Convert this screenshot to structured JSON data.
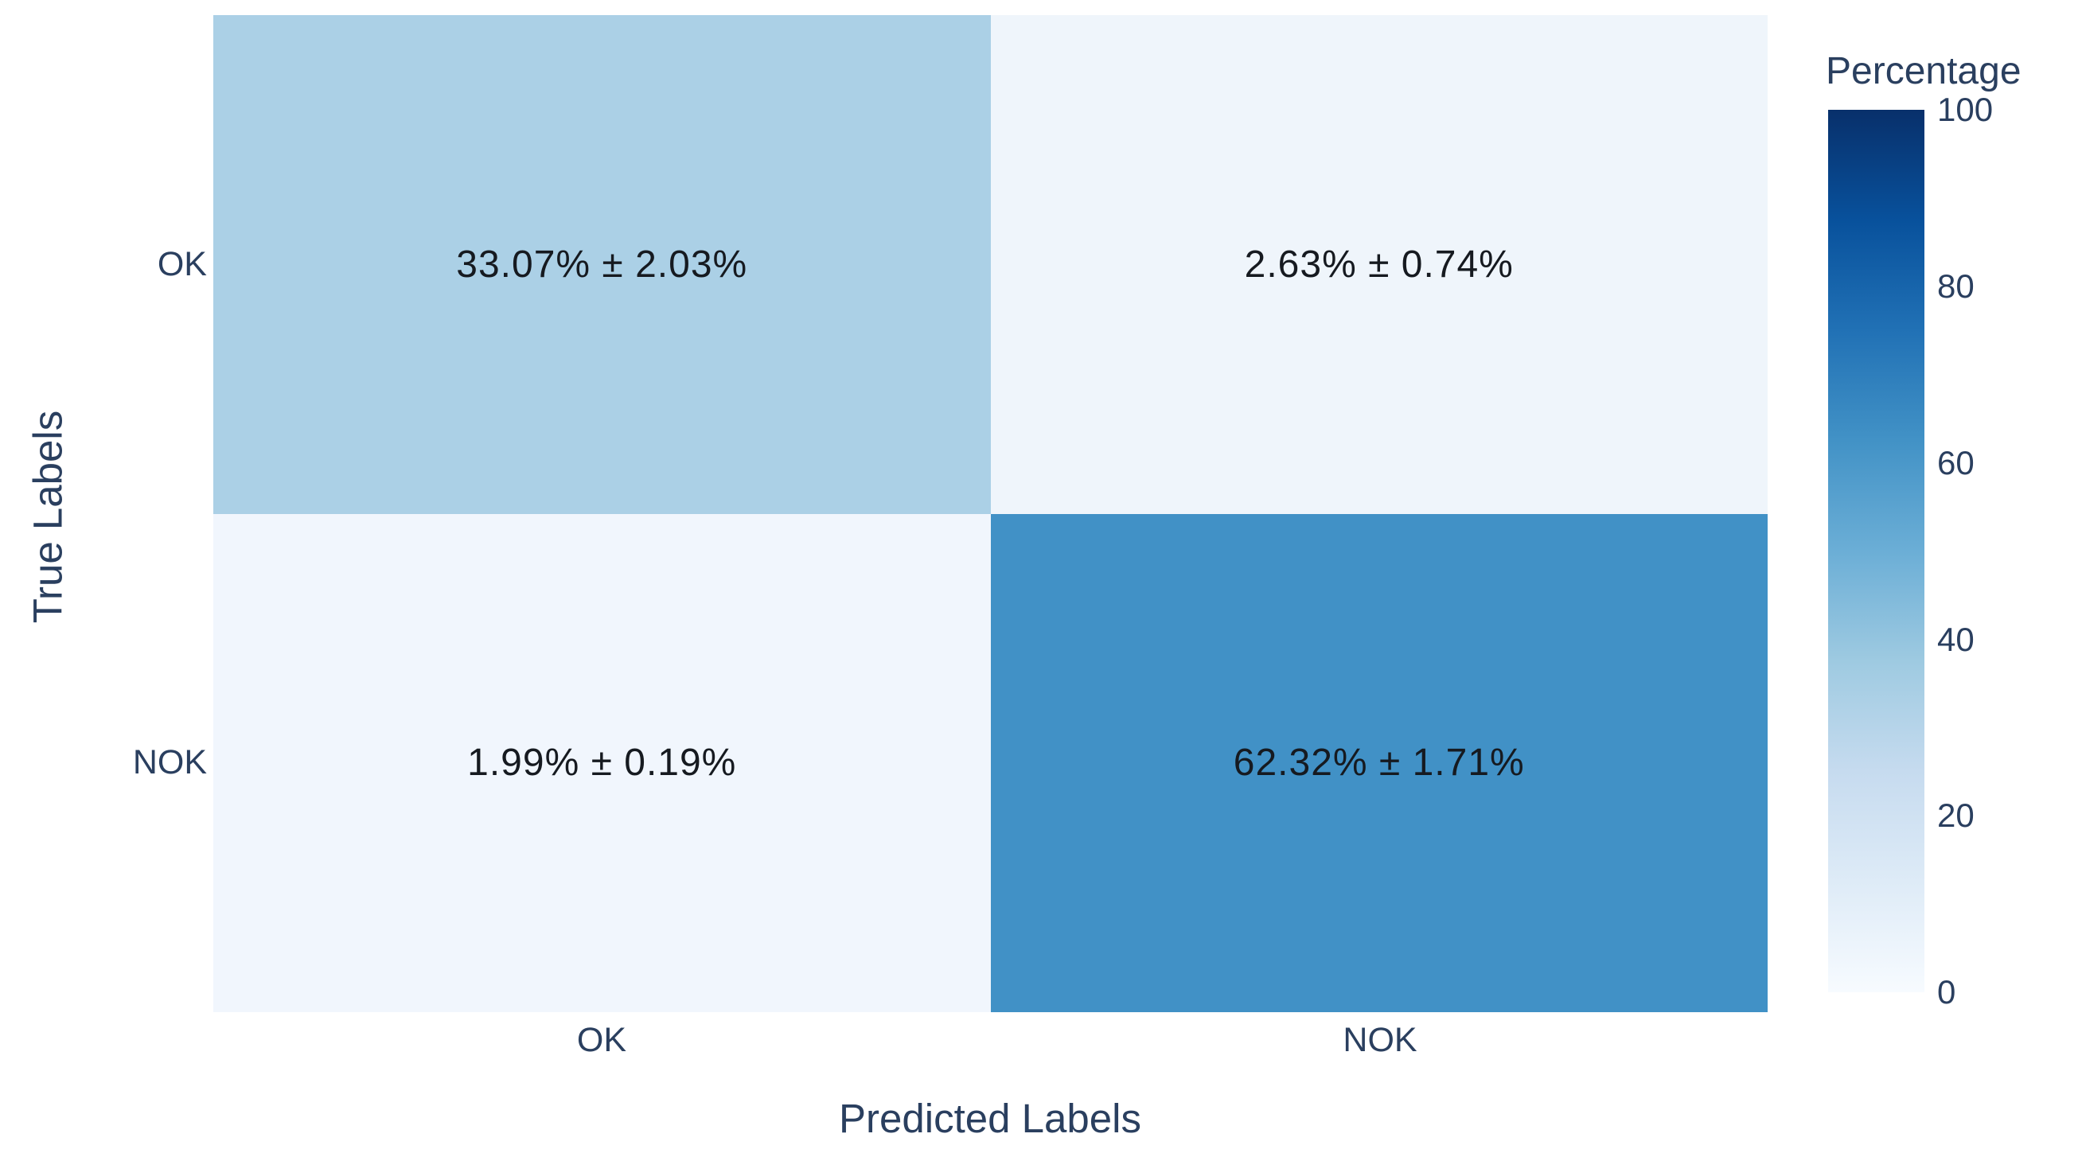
{
  "chart_data": {
    "type": "heatmap",
    "description": "Confusion matrix heatmap with percentage values and standard deviations",
    "xlabel": "Predicted Labels",
    "ylabel": "True Labels",
    "x_categories": [
      "OK",
      "NOK"
    ],
    "y_categories": [
      "OK",
      "NOK"
    ],
    "cells": [
      {
        "true_label": "OK",
        "predicted_label": "OK",
        "value": 33.07,
        "std": 2.03,
        "label": "33.07% ± 2.03%",
        "color": "#abd0e6"
      },
      {
        "true_label": "OK",
        "predicted_label": "NOK",
        "value": 2.63,
        "std": 0.74,
        "label": "2.63% ± 0.74%",
        "color": "#eff5fb"
      },
      {
        "true_label": "NOK",
        "predicted_label": "OK",
        "value": 1.99,
        "std": 0.19,
        "label": "1.99% ± 0.19%",
        "color": "#f1f6fd"
      },
      {
        "true_label": "NOK",
        "predicted_label": "NOK",
        "value": 62.32,
        "std": 1.71,
        "label": "62.32% ± 1.71%",
        "color": "#4191c6"
      }
    ],
    "colorbar": {
      "title": "Percentage",
      "min": 0,
      "max": 100,
      "ticks": [
        "100",
        "80",
        "60",
        "40",
        "20",
        "0"
      ],
      "colormap": "Blues",
      "gradient_stops": [
        {
          "color": "#08306b",
          "pos": "0%"
        },
        {
          "color": "#08519c",
          "pos": "12.5%"
        },
        {
          "color": "#2171b5",
          "pos": "25%"
        },
        {
          "color": "#4292c6",
          "pos": "37.5%"
        },
        {
          "color": "#6baed6",
          "pos": "50%"
        },
        {
          "color": "#9ecae1",
          "pos": "62.5%"
        },
        {
          "color": "#c6dbef",
          "pos": "75%"
        },
        {
          "color": "#deebf7",
          "pos": "87.5%"
        },
        {
          "color": "#f7fbff",
          "pos": "100%"
        }
      ]
    },
    "layout_hints": {
      "legend_position": "right-colorbar",
      "grid": false,
      "background": "#ffffff",
      "axis_text_color": "#2a3f5f",
      "cell_text_color": "#161a20"
    }
  }
}
